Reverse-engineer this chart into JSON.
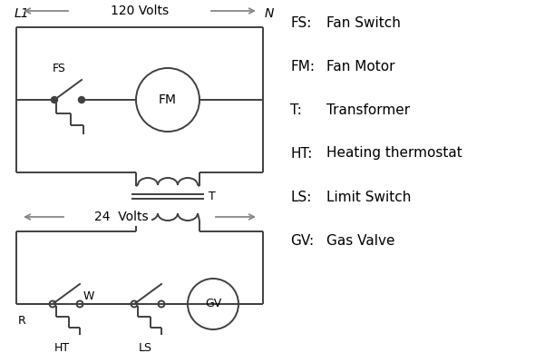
{
  "background_color": "#ffffff",
  "line_color": "#404040",
  "text_color": "#000000",
  "arrow_color": "#888888",
  "legend_items": [
    [
      "FS:",
      "Fan Switch"
    ],
    [
      "FM:",
      "Fan Motor"
    ],
    [
      "T:",
      "Transformer"
    ],
    [
      "HT:",
      "Heating thermostat"
    ],
    [
      "LS:",
      "Limit Switch"
    ],
    [
      "GV:",
      "Gas Valve"
    ]
  ]
}
